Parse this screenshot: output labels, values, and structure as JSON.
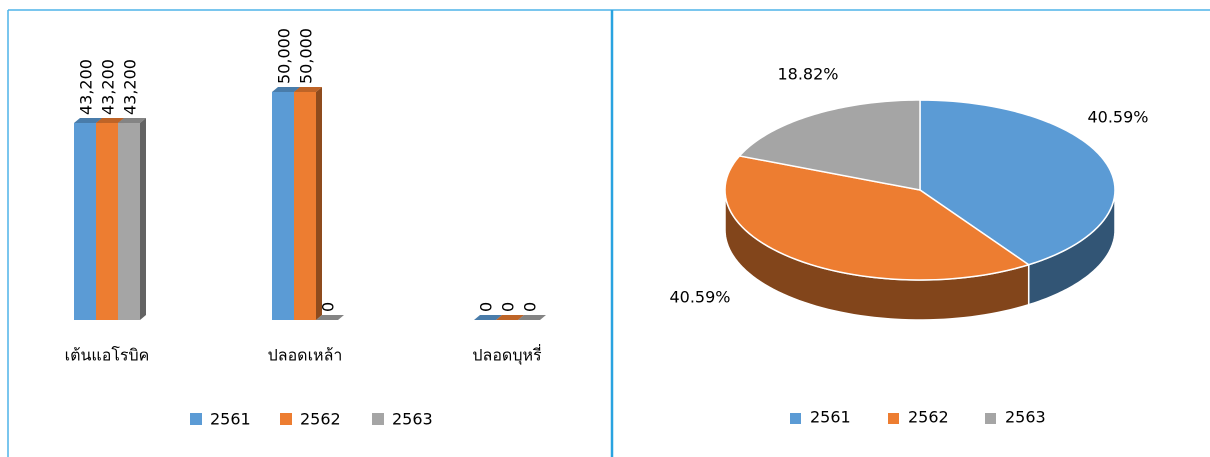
{
  "chart_data": [
    {
      "type": "bar3d",
      "categories": [
        "เต้นแอโรบิค",
        "ปลอดเหล้า",
        "ปลอดบุหรี่"
      ],
      "series": [
        {
          "name": "2561",
          "color": "#5b9bd5",
          "values": [
            43200,
            50000,
            0
          ],
          "value_labels": [
            "43,200",
            "50,000",
            "0"
          ]
        },
        {
          "name": "2562",
          "color": "#ed7d31",
          "values": [
            43200,
            50000,
            0
          ],
          "value_labels": [
            "43,200",
            "50,000",
            "0"
          ]
        },
        {
          "name": "2563",
          "color": "#a5a5a5",
          "values": [
            43200,
            0,
            0
          ],
          "value_labels": [
            "43,200",
            "0",
            "0"
          ]
        }
      ],
      "legend": "bottom"
    },
    {
      "type": "pie3d",
      "categories": [
        "2561",
        "2562",
        "2563"
      ],
      "values": [
        40.59,
        40.59,
        18.82
      ],
      "value_labels": [
        "40.59%",
        "40.59%",
        "18.82%"
      ],
      "colors": [
        "#5b9bd5",
        "#ed7d31",
        "#a5a5a5"
      ],
      "legend": "bottom"
    }
  ]
}
